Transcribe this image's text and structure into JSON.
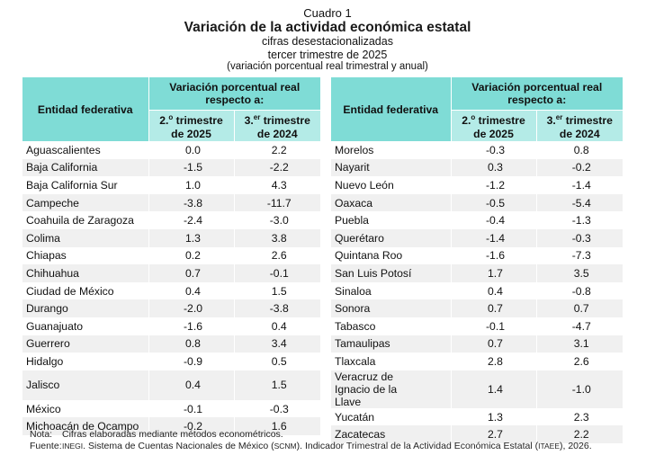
{
  "header": {
    "label": "Cuadro 1",
    "title": "Variación de la actividad económica estatal",
    "subtitle1": "cifras desestacionalizadas",
    "subtitle2": "tercer trimestre de 2025",
    "subtitle3": "(variación porcentual real trimestral y anual)"
  },
  "columns": {
    "entity": "Entidad federativa",
    "group": "Variación porcentual real respecto a:",
    "col1_main": "2.",
    "col1_sup": "o",
    "col1_rest": " trimestre",
    "col1_year": "de 2025",
    "col2_main": "3.",
    "col2_sup": "er",
    "col2_rest": " trimestre",
    "col2_year": "de 2024"
  },
  "left_rows": [
    {
      "entity": "Aguascalientes",
      "q2_2025": "0.0",
      "q3_2024": "2.2"
    },
    {
      "entity": "Baja California",
      "q2_2025": "-1.5",
      "q3_2024": "-2.2"
    },
    {
      "entity": "Baja California Sur",
      "q2_2025": "1.0",
      "q3_2024": "4.3"
    },
    {
      "entity": "Campeche",
      "q2_2025": "-3.8",
      "q3_2024": "-11.7"
    },
    {
      "entity": "Coahuila de Zaragoza",
      "q2_2025": "-2.4",
      "q3_2024": "-3.0"
    },
    {
      "entity": "Colima",
      "q2_2025": "1.3",
      "q3_2024": "3.8"
    },
    {
      "entity": "Chiapas",
      "q2_2025": "0.2",
      "q3_2024": "2.6"
    },
    {
      "entity": "Chihuahua",
      "q2_2025": "0.7",
      "q3_2024": "-0.1"
    },
    {
      "entity": "Ciudad de México",
      "q2_2025": "0.4",
      "q3_2024": "1.5"
    },
    {
      "entity": "Durango",
      "q2_2025": "-2.0",
      "q3_2024": "-3.8"
    },
    {
      "entity": "Guanajuato",
      "q2_2025": "-1.6",
      "q3_2024": "0.4"
    },
    {
      "entity": "Guerrero",
      "q2_2025": "0.8",
      "q3_2024": "3.4"
    },
    {
      "entity": "Hidalgo",
      "q2_2025": "-0.9",
      "q3_2024": "0.5"
    },
    {
      "entity": "Jalisco",
      "q2_2025": "0.4",
      "q3_2024": "1.5"
    },
    {
      "entity": "México",
      "q2_2025": "-0.1",
      "q3_2024": "-0.3"
    },
    {
      "entity": "Michoacán de Ocampo",
      "q2_2025": "-0.2",
      "q3_2024": "1.6"
    }
  ],
  "right_rows": [
    {
      "entity": "Morelos",
      "q2_2025": "-0.3",
      "q3_2024": "0.8"
    },
    {
      "entity": "Nayarit",
      "q2_2025": "0.3",
      "q3_2024": "-0.2"
    },
    {
      "entity": "Nuevo León",
      "q2_2025": "-1.2",
      "q3_2024": "-1.4"
    },
    {
      "entity": "Oaxaca",
      "q2_2025": "-0.5",
      "q3_2024": "-5.4"
    },
    {
      "entity": "Puebla",
      "q2_2025": "-0.4",
      "q3_2024": "-1.3"
    },
    {
      "entity": "Querétaro",
      "q2_2025": "-1.4",
      "q3_2024": "-0.3"
    },
    {
      "entity": "Quintana Roo",
      "q2_2025": "-1.6",
      "q3_2024": "-7.3"
    },
    {
      "entity": "San Luis Potosí",
      "q2_2025": "1.7",
      "q3_2024": "3.5"
    },
    {
      "entity": "Sinaloa",
      "q2_2025": "0.4",
      "q3_2024": "-0.8"
    },
    {
      "entity": "Sonora",
      "q2_2025": "0.7",
      "q3_2024": "0.7"
    },
    {
      "entity": "Tabasco",
      "q2_2025": "-0.1",
      "q3_2024": "-4.7"
    },
    {
      "entity": "Tamaulipas",
      "q2_2025": "0.7",
      "q3_2024": "3.1"
    },
    {
      "entity": "Tlaxcala",
      "q2_2025": "2.8",
      "q3_2024": "2.6"
    },
    {
      "entity": "Veracruz de Ignacio de la Llave",
      "q2_2025": "1.4",
      "q3_2024": "-1.0"
    },
    {
      "entity": "Yucatán",
      "q2_2025": "1.3",
      "q3_2024": "2.3"
    },
    {
      "entity": "Zacatecas",
      "q2_2025": "2.7",
      "q3_2024": "2.2"
    }
  ],
  "footer": {
    "note_label": "Nota:",
    "note_text": "Cifras elaboradas mediante métodos econométricos.",
    "source_label": "Fuente:",
    "source_org": "INEGI",
    "source_text1": ". Sistema de Cuentas Nacionales de México (",
    "source_abbr1": "SCNM",
    "source_text2": "). Indicador Trimestral de la Actividad Económica Estatal (",
    "source_abbr2": "ITAEE",
    "source_text3": "), 2026."
  },
  "colors": {
    "header_dark": "#7fdcd6",
    "header_light": "#b4ebe7",
    "row_alt": "#f0f0f0"
  }
}
